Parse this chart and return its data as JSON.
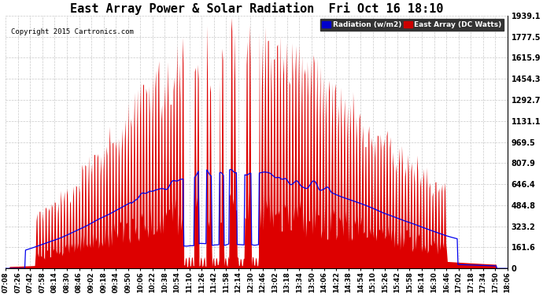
{
  "title": "East Array Power & Solar Radiation  Fri Oct 16 18:10",
  "copyright": "Copyright 2015 Cartronics.com",
  "ylabel_right_ticks": [
    0.0,
    161.6,
    323.2,
    484.8,
    646.4,
    807.9,
    969.5,
    1131.1,
    1292.7,
    1454.3,
    1615.9,
    1777.5,
    1939.1
  ],
  "ymax": 1939.1,
  "ymin": 0.0,
  "legend_radiation_label": "Radiation (w/m2)",
  "legend_east_label": "East Array (DC Watts)",
  "legend_radiation_bg": "#0000cc",
  "legend_east_bg": "#cc0000",
  "background_color": "#ffffff",
  "plot_bg_color": "#ffffff",
  "grid_color": "#bbbbbb",
  "red_fill_color": "#dd0000",
  "blue_line_color": "#0000ee",
  "title_fontsize": 11,
  "x_tick_labels": [
    "07:08",
    "07:26",
    "07:42",
    "07:58",
    "08:14",
    "08:30",
    "08:46",
    "09:02",
    "09:18",
    "09:34",
    "09:50",
    "10:06",
    "10:22",
    "10:38",
    "10:54",
    "11:10",
    "11:26",
    "11:42",
    "11:58",
    "12:14",
    "12:30",
    "12:46",
    "13:02",
    "13:18",
    "13:34",
    "13:50",
    "14:06",
    "14:22",
    "14:38",
    "14:54",
    "15:10",
    "15:26",
    "15:42",
    "15:58",
    "16:14",
    "16:30",
    "16:46",
    "17:02",
    "17:18",
    "17:34",
    "17:50",
    "18:06"
  ],
  "n_points": 660
}
